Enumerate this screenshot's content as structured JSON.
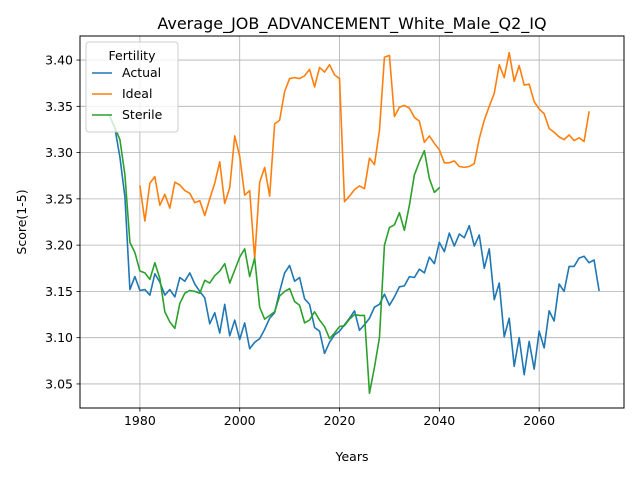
{
  "chart_data": {
    "type": "line",
    "title": "Average_JOB_ADVANCEMENT_White_Male_Q2_IQ",
    "xlabel": "Years",
    "ylabel": "Score(1-5)",
    "xlim": [
      1968,
      2077
    ],
    "ylim": [
      3.024,
      3.426
    ],
    "x_ticks": [
      1980,
      2000,
      2020,
      2040,
      2060
    ],
    "y_ticks": [
      3.05,
      3.1,
      3.15,
      3.2,
      3.25,
      3.3,
      3.35,
      3.4
    ],
    "x_tick_labels": [
      "1980",
      "2000",
      "2020",
      "2040",
      "2060"
    ],
    "y_tick_labels": [
      "3.05",
      "3.10",
      "3.15",
      "3.20",
      "3.25",
      "3.30",
      "3.35",
      "3.40"
    ],
    "grid": true,
    "legend": {
      "title": "Fertility",
      "placement": "top-left"
    },
    "colors": {
      "Actual": "#1f77b4",
      "Ideal": "#ff7f0e",
      "Sterile": "#2ca02c"
    },
    "series": [
      {
        "name": "Actual",
        "start": 1974,
        "values": [
          3.339,
          3.326,
          3.295,
          3.252,
          3.152,
          3.166,
          3.151,
          3.152,
          3.146,
          3.169,
          3.16,
          3.146,
          3.152,
          3.144,
          3.165,
          3.161,
          3.17,
          3.158,
          3.15,
          3.143,
          3.115,
          3.127,
          3.105,
          3.136,
          3.102,
          3.119,
          3.098,
          3.116,
          3.088,
          3.095,
          3.099,
          3.109,
          3.121,
          3.127,
          3.15,
          3.17,
          3.178,
          3.161,
          3.165,
          3.142,
          3.136,
          3.111,
          3.107,
          3.083,
          3.095,
          3.103,
          3.107,
          3.114,
          3.121,
          3.129,
          3.108,
          3.114,
          3.121,
          3.133,
          3.136,
          3.147,
          3.135,
          3.144,
          3.155,
          3.156,
          3.166,
          3.165,
          3.174,
          3.17,
          3.187,
          3.18,
          3.203,
          3.193,
          3.213,
          3.199,
          3.212,
          3.208,
          3.221,
          3.199,
          3.211,
          3.175,
          3.196,
          3.141,
          3.159,
          3.101,
          3.121,
          3.069,
          3.1,
          3.06,
          3.096,
          3.066,
          3.107,
          3.089,
          3.129,
          3.118,
          3.158,
          3.15,
          3.177,
          3.177,
          3.186,
          3.188,
          3.181,
          3.184,
          3.151
        ]
      },
      {
        "name": "Ideal",
        "start": 1980,
        "values": [
          3.264,
          3.226,
          3.267,
          3.274,
          3.243,
          3.255,
          3.24,
          3.268,
          3.265,
          3.259,
          3.256,
          3.246,
          3.248,
          3.232,
          3.25,
          3.267,
          3.29,
          3.245,
          3.262,
          3.318,
          3.296,
          3.254,
          3.259,
          3.185,
          3.268,
          3.284,
          3.253,
          3.331,
          3.335,
          3.366,
          3.38,
          3.381,
          3.38,
          3.383,
          3.39,
          3.371,
          3.392,
          3.387,
          3.395,
          3.384,
          3.38,
          3.247,
          3.253,
          3.26,
          3.264,
          3.261,
          3.294,
          3.287,
          3.324,
          3.403,
          3.405,
          3.339,
          3.349,
          3.351,
          3.348,
          3.338,
          3.334,
          3.311,
          3.318,
          3.31,
          3.303,
          3.289,
          3.289,
          3.291,
          3.285,
          3.284,
          3.285,
          3.288,
          3.315,
          3.335,
          3.35,
          3.364,
          3.395,
          3.381,
          3.408,
          3.377,
          3.394,
          3.373,
          3.374,
          3.355,
          3.347,
          3.342,
          3.326,
          3.322,
          3.317,
          3.314,
          3.319,
          3.313,
          3.316,
          3.312,
          3.344
        ]
      },
      {
        "name": "Sterile",
        "start": 1974,
        "values": [
          3.339,
          3.327,
          3.314,
          3.276,
          3.203,
          3.192,
          3.172,
          3.17,
          3.163,
          3.181,
          3.164,
          3.128,
          3.117,
          3.11,
          3.137,
          3.148,
          3.151,
          3.15,
          3.148,
          3.162,
          3.159,
          3.167,
          3.172,
          3.18,
          3.159,
          3.173,
          3.187,
          3.196,
          3.166,
          3.186,
          3.133,
          3.12,
          3.124,
          3.128,
          3.145,
          3.15,
          3.153,
          3.139,
          3.135,
          3.116,
          3.119,
          3.128,
          3.119,
          3.112,
          3.099,
          3.105,
          3.112,
          3.113,
          3.12,
          3.125,
          3.124,
          3.124,
          3.04,
          3.068,
          3.1,
          3.2,
          3.219,
          3.222,
          3.235,
          3.216,
          3.243,
          3.276,
          3.29,
          3.302,
          3.272,
          3.257,
          3.262
        ]
      }
    ]
  }
}
